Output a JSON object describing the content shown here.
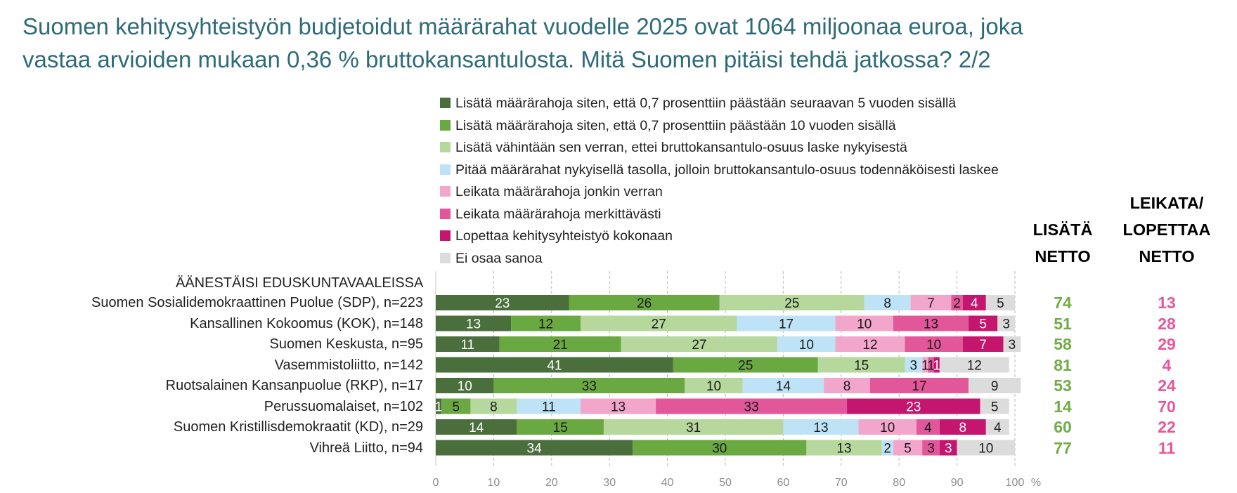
{
  "title": [
    "Suomen kehitysyhteistyön budjetoidut määrärahat vuodelle 2025 ovat 1064 miljoonaa euroa, joka",
    "vastaa arvioiden mukaan 0,36 % bruttokansantulosta. Mitä Suomen pitäisi tehdä jatkossa? 2/2"
  ],
  "section_label": "ÄÄNESTÄISI EDUSKUNTAVAALEISSA",
  "net_headers": {
    "lisata": [
      "LISÄTÄ",
      "NETTO"
    ],
    "leikata": [
      "LEIKATA/",
      "LOPETTAA",
      "NETTO"
    ]
  },
  "colors": {
    "net_lisata": "#70ad47",
    "net_leikata": "#e8559a",
    "title": "#2e6b78"
  },
  "chart_data": {
    "type": "bar",
    "orientation": "horizontal",
    "stacked": true,
    "xlabel": "%",
    "xlim": [
      0,
      100
    ],
    "xticks": [
      0,
      10,
      20,
      30,
      40,
      50,
      60,
      70,
      80,
      90,
      100
    ],
    "grid": true,
    "legend_position": "top",
    "categories": [
      "Suomen Sosialidemokraattinen Puolue (SDP), n=223",
      "Kansallinen Kokoomus (KOK), n=148",
      "Suomen Keskusta, n=95",
      "Vasemmistoliitto, n=142",
      "Ruotsalainen Kansanpuolue (RKP), n=17",
      "Perussuomalaiset, n=102",
      "Suomen Kristillisdemokraatit (KD), n=29",
      "Vihreä Liitto, n=94"
    ],
    "series": [
      {
        "name": "Lisätä määrärahoja siten, että 0,7 prosenttiin päästään seuraavan 5 vuoden sisällä",
        "color": "#4a6e3c",
        "text_color": "#ffffff",
        "values": [
          23,
          13,
          11,
          41,
          10,
          1,
          14,
          34
        ]
      },
      {
        "name": "Lisätä määrärahoja siten, että 0,7 prosenttiin päästään 10 vuoden sisällä",
        "color": "#6aa842",
        "text_color": "#1a1a1a",
        "values": [
          26,
          12,
          21,
          25,
          33,
          5,
          15,
          30
        ]
      },
      {
        "name": "Lisätä vähintään sen verran, ettei bruttokansantulo-osuus laske nykyisestä",
        "color": "#b6d89c",
        "text_color": "#1a1a1a",
        "values": [
          25,
          27,
          27,
          15,
          10,
          8,
          31,
          13
        ]
      },
      {
        "name": "Pitää määrärahat nykyisellä tasolla, jolloin bruttokansantulo-osuus todennäköisesti laskee",
        "color": "#bfe3f6",
        "text_color": "#1a1a1a",
        "values": [
          8,
          17,
          10,
          3,
          14,
          11,
          13,
          2
        ]
      },
      {
        "name": "Leikata määrärahoja jonkin verran",
        "color": "#f2a6cb",
        "text_color": "#1a1a1a",
        "values": [
          7,
          10,
          12,
          1,
          8,
          13,
          10,
          5
        ]
      },
      {
        "name": "Leikata määrärahoja merkittävästi",
        "color": "#e2569a",
        "text_color": "#1a1a1a",
        "values": [
          2,
          13,
          10,
          1,
          17,
          33,
          4,
          3
        ]
      },
      {
        "name": "Lopettaa kehitysyhteistyö kokonaan",
        "color": "#c4166e",
        "text_color": "#ffffff",
        "values": [
          4,
          5,
          7,
          1,
          0,
          23,
          8,
          3
        ]
      },
      {
        "name": "Ei osaa sanoa",
        "color": "#dcdcdc",
        "text_color": "#1a1a1a",
        "values": [
          5,
          3,
          3,
          12,
          9,
          5,
          4,
          10
        ]
      }
    ],
    "net_lisata": [
      74,
      51,
      58,
      81,
      53,
      14,
      60,
      77
    ],
    "net_leikata": [
      13,
      28,
      29,
      4,
      24,
      70,
      22,
      11
    ]
  }
}
